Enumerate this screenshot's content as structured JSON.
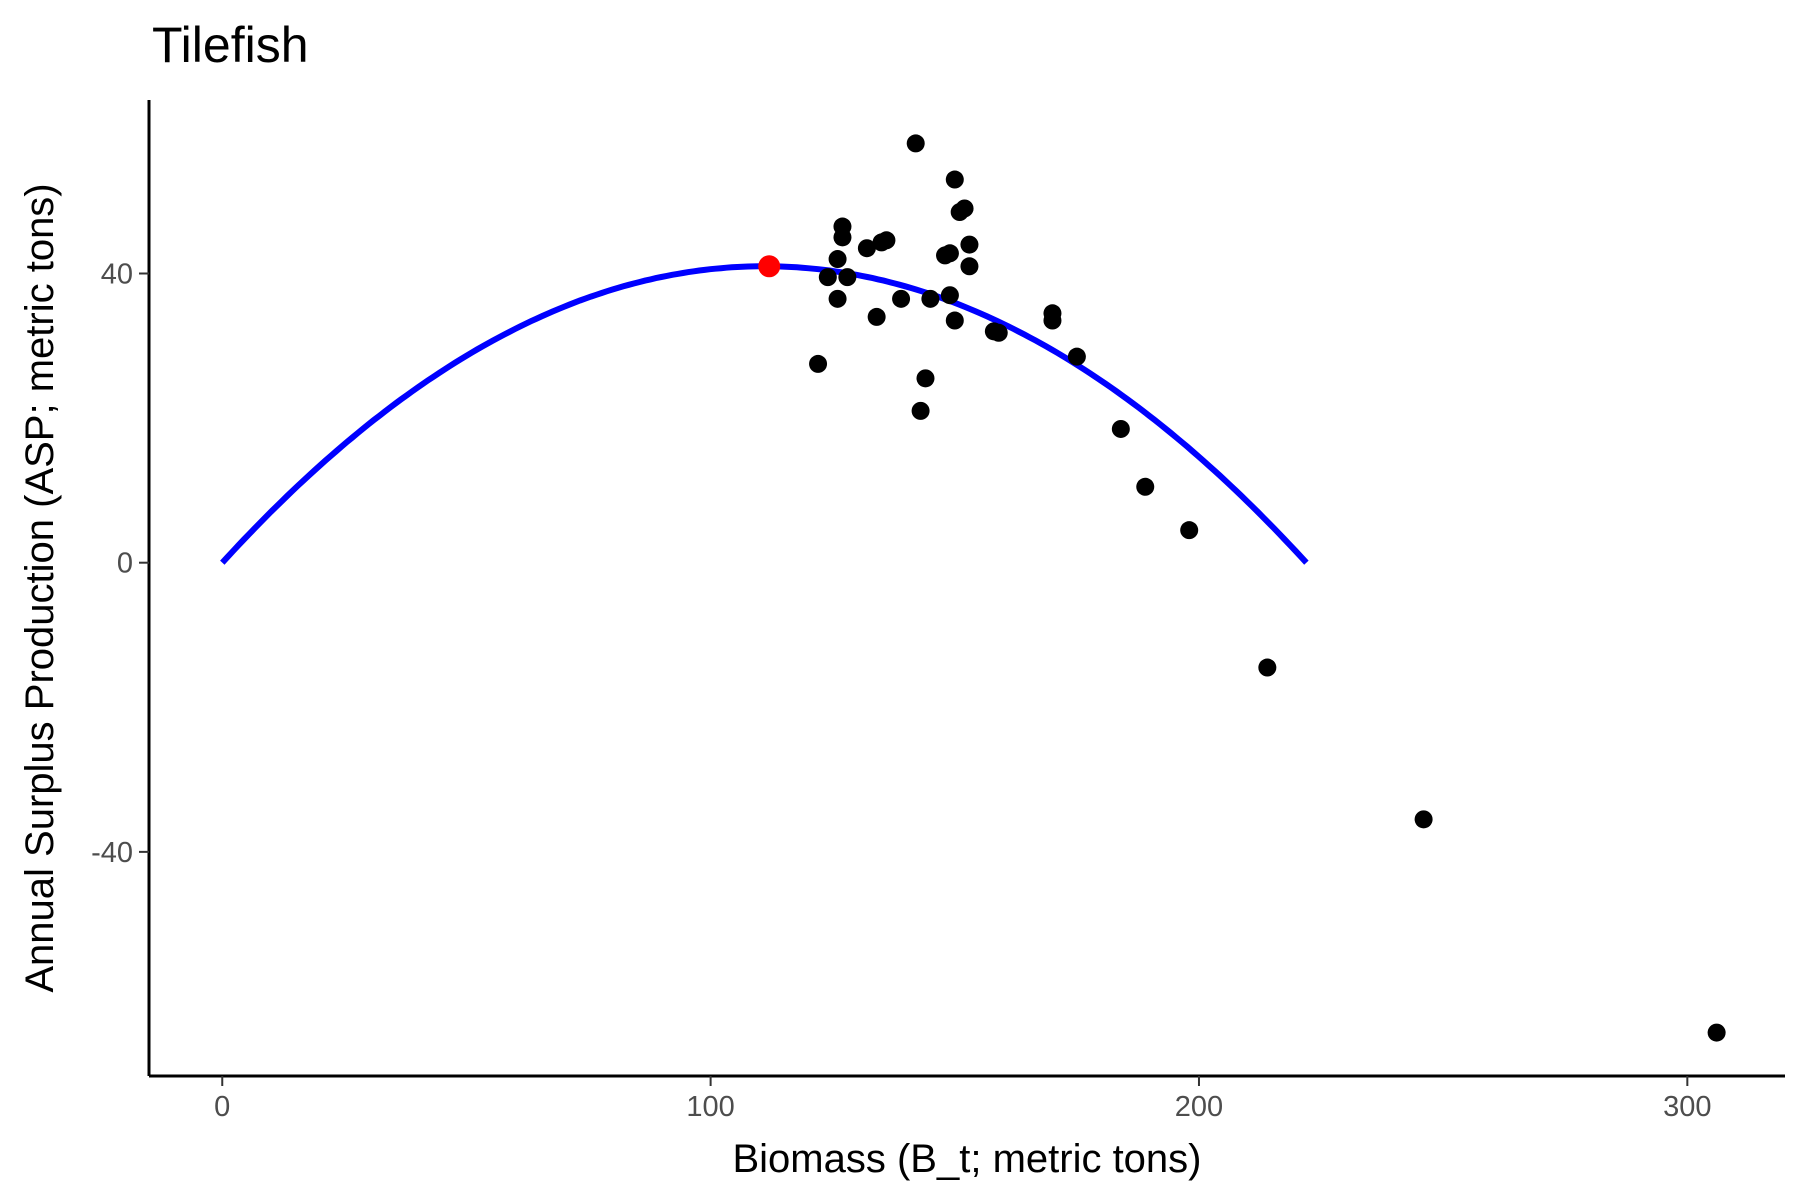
{
  "chart_data": {
    "type": "scatter",
    "title": "Tilefish",
    "xlabel": "Biomass (B_t; metric tons)",
    "ylabel": "Annual Surplus Production (ASP; metric tons)",
    "xlim": [
      -15,
      320
    ],
    "ylim": [
      -71,
      64
    ],
    "x_ticks": [
      0,
      100,
      200,
      300
    ],
    "y_ticks": [
      -40,
      0,
      40
    ],
    "x_tick_labels": [
      "0",
      "100",
      "200",
      "300"
    ],
    "y_tick_labels": [
      "-40",
      "0",
      "40"
    ],
    "grid": false,
    "legend": "none",
    "colors": {
      "points": "#000000",
      "curve": "#0000ff",
      "msy_point": "#ff0000"
    },
    "series": [
      {
        "type": "scatter",
        "points": [
          [
            142,
            58
          ],
          [
            150,
            53
          ],
          [
            127,
            46.5
          ],
          [
            127,
            45
          ],
          [
            152,
            49
          ],
          [
            151,
            48.5
          ],
          [
            135,
            44.3
          ],
          [
            136,
            44.6
          ],
          [
            132,
            43.5
          ],
          [
            153,
            44
          ],
          [
            148,
            42.5
          ],
          [
            149,
            42.8
          ],
          [
            126,
            42
          ],
          [
            153,
            41
          ],
          [
            124,
            39.5
          ],
          [
            128,
            39.5
          ],
          [
            149,
            37
          ],
          [
            145,
            36.5
          ],
          [
            126,
            36.5
          ],
          [
            139,
            36.5
          ],
          [
            134,
            34
          ],
          [
            150,
            33.5
          ],
          [
            170,
            34.5
          ],
          [
            170,
            33.5
          ],
          [
            158,
            32
          ],
          [
            159,
            31.8
          ],
          [
            175,
            28.5
          ],
          [
            122,
            27.5
          ],
          [
            144,
            25.5
          ],
          [
            143,
            21
          ],
          [
            184,
            18.5
          ],
          [
            189,
            10.5
          ],
          [
            198,
            4.5
          ],
          [
            214,
            -14.5
          ],
          [
            246,
            -35.5
          ],
          [
            306,
            -65
          ]
        ]
      },
      {
        "type": "line",
        "model": "parabola",
        "x_start": 0,
        "x_end": 222,
        "y_peak": 41
      },
      {
        "type": "scatter",
        "points": [
          [
            112,
            41
          ]
        ]
      }
    ]
  }
}
